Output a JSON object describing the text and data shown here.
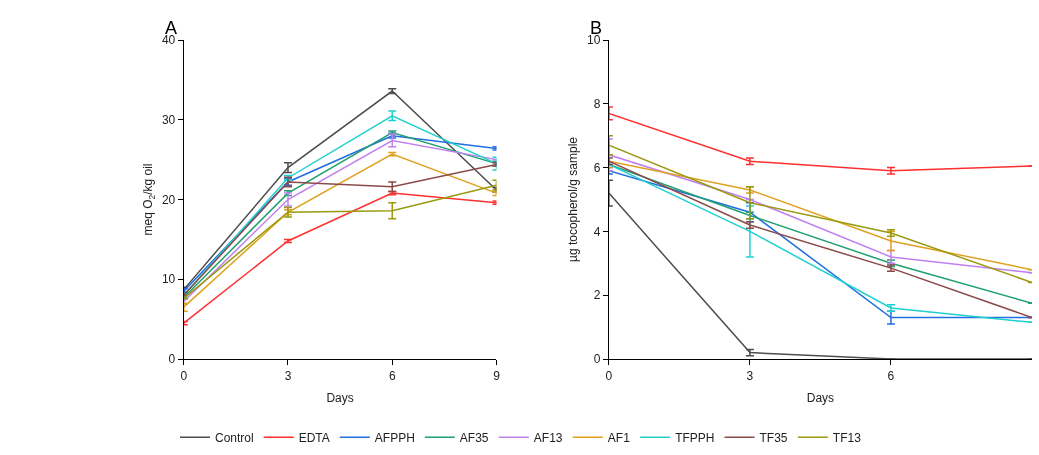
{
  "chart_data": [
    {
      "type": "line",
      "title": "A",
      "xlabel": "Days",
      "ylabel": "meq O$_{2}$/kg oil",
      "x": [
        0,
        3,
        6,
        9
      ],
      "xlim": [
        0,
        9
      ],
      "xticks": [
        0,
        3,
        6,
        9
      ],
      "ylim": [
        0,
        40
      ],
      "yticks": [
        0,
        10,
        20,
        30,
        40
      ],
      "legend": "bottom",
      "line_style": "solid",
      "series": [
        {
          "name": "Control",
          "color": "#4d4d4d",
          "values": [
            8.7,
            24.0,
            33.6,
            21.2
          ],
          "errors": [
            0.3,
            0.6,
            0.3,
            0.3
          ]
        },
        {
          "name": "EDTA",
          "color": "#ff3030",
          "values": [
            4.5,
            14.8,
            20.8,
            19.6
          ],
          "errors": [
            0.2,
            0.2,
            0.2,
            0.2
          ]
        },
        {
          "name": "AFPPH",
          "color": "#1f6fe0",
          "values": [
            8.5,
            22.2,
            28.0,
            26.4
          ],
          "errors": [
            0.3,
            0.4,
            0.3,
            0.2
          ]
        },
        {
          "name": "AF35",
          "color": "#20a070",
          "values": [
            7.7,
            20.8,
            28.4,
            24.5
          ],
          "errors": [
            null,
            0.3,
            0.2,
            0.3
          ]
        },
        {
          "name": "AF13",
          "color": "#c080f0",
          "values": [
            7.2,
            20.0,
            27.4,
            25.0
          ],
          "errors": [
            0.3,
            0.8,
            0.8,
            null
          ]
        },
        {
          "name": "AF1",
          "color": "#e0a020",
          "values": [
            6.5,
            18.4,
            25.7,
            20.8
          ],
          "errors": [
            0.5,
            0.3,
            0.2,
            0.3
          ]
        },
        {
          "name": "TFPPH",
          "color": "#20d0d0",
          "values": [
            8.0,
            22.7,
            30.5,
            24.5
          ],
          "errors": [
            null,
            0.3,
            0.6,
            0.8
          ]
        },
        {
          "name": "TF35",
          "color": "#8b4a4a",
          "values": [
            8.0,
            22.2,
            21.6,
            24.4
          ],
          "errors": [
            null,
            0.6,
            0.6,
            0.2
          ]
        },
        {
          "name": "TF13",
          "color": "#9a9a10",
          "values": [
            7.6,
            18.4,
            18.6,
            21.8
          ],
          "errors": [
            null,
            0.6,
            1.0,
            0.6
          ]
        }
      ]
    },
    {
      "type": "line",
      "title": "B",
      "xlabel": "Days",
      "ylabel": "µg tocopherol/g sample",
      "x": [
        0,
        3,
        6,
        9
      ],
      "xlim": [
        0,
        9
      ],
      "xticks": [
        0,
        3,
        6
      ],
      "ylim": [
        0,
        10
      ],
      "yticks": [
        0,
        2,
        4,
        6,
        8,
        10
      ],
      "legend": false,
      "line_style": "solid",
      "series": [
        {
          "name": "Control",
          "color": "#4d4d4d",
          "values": [
            5.2,
            0.2,
            0.0,
            0.0
          ],
          "errors": [
            0.4,
            0.1,
            null,
            null
          ]
        },
        {
          "name": "EDTA",
          "color": "#ff3030",
          "values": [
            7.7,
            6.2,
            5.9,
            6.05
          ],
          "errors": [
            0.2,
            0.1,
            0.1,
            null
          ]
        },
        {
          "name": "AFPPH",
          "color": "#1f6fe0",
          "values": [
            5.9,
            4.6,
            1.3,
            1.3
          ],
          "errors": [
            0.1,
            0.3,
            0.2,
            null
          ]
        },
        {
          "name": "AF35",
          "color": "#20a070",
          "values": [
            6.1,
            4.5,
            3.0,
            1.75
          ],
          "errors": [
            null,
            0.1,
            0.1,
            null
          ]
        },
        {
          "name": "AF13",
          "color": "#c080f0",
          "values": [
            6.4,
            5.0,
            3.2,
            2.7
          ],
          "errors": [
            0.5,
            null,
            0.2,
            null
          ]
        },
        {
          "name": "AF1",
          "color": "#e0a020",
          "values": [
            6.2,
            5.3,
            3.7,
            2.8
          ],
          "errors": [
            0.2,
            0.1,
            0.3,
            null
          ]
        },
        {
          "name": "TFPPH",
          "color": "#20d0d0",
          "values": [
            6.1,
            4.0,
            1.6,
            1.15
          ],
          "errors": [
            null,
            0.8,
            0.1,
            null
          ]
        },
        {
          "name": "TF35",
          "color": "#8b4a4a",
          "values": [
            6.2,
            4.2,
            2.85,
            1.3
          ],
          "errors": [
            0.1,
            0.1,
            0.1,
            null
          ]
        },
        {
          "name": "TF13",
          "color": "#9a9a10",
          "values": [
            6.7,
            4.9,
            3.95,
            2.4
          ],
          "errors": [
            0.3,
            0.5,
            0.1,
            null
          ]
        }
      ]
    }
  ]
}
